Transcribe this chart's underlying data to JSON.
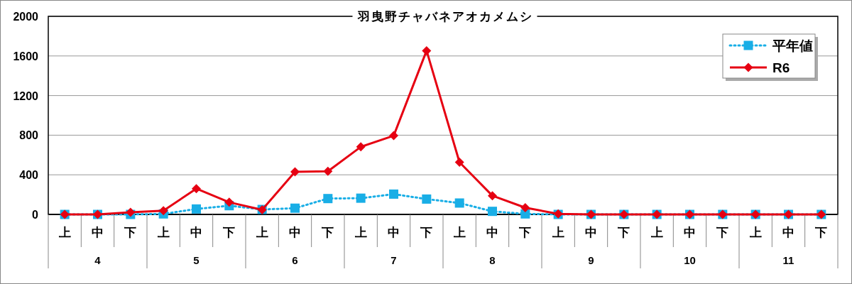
{
  "chart_data": {
    "type": "line",
    "title": "羽曳野チャバネアオカメムシ",
    "categories": [
      "上",
      "中",
      "下",
      "上",
      "中",
      "下",
      "上",
      "中",
      "下",
      "上",
      "中",
      "下",
      "上",
      "中",
      "下",
      "上",
      "中",
      "下",
      "上",
      "中",
      "下",
      "上",
      "中",
      "下"
    ],
    "annotations": [
      "4",
      "5",
      "6",
      "7",
      "8",
      "9",
      "10",
      "11"
    ],
    "series": [
      {
        "name": "平年値",
        "color": "#19aee6",
        "marker": "square",
        "line_style": "dotted",
        "values": [
          0,
          0,
          0,
          5,
          55,
          88,
          50,
          63,
          160,
          164,
          205,
          155,
          115,
          31,
          5,
          0,
          0,
          0,
          0,
          0,
          0,
          0,
          0,
          0
        ]
      },
      {
        "name": "R6",
        "color": "#e60012",
        "marker": "diamond",
        "line_style": "solid",
        "values": [
          0,
          0,
          22,
          38,
          260,
          123,
          47,
          430,
          436,
          682,
          795,
          1653,
          527,
          189,
          68,
          5,
          0,
          0,
          0,
          0,
          0,
          0,
          0,
          0
        ]
      }
    ],
    "ylim": [
      0,
      2000
    ],
    "yticks": [
      0,
      400,
      800,
      1200,
      1600,
      2000
    ],
    "grid": "y",
    "legend": "top right"
  }
}
